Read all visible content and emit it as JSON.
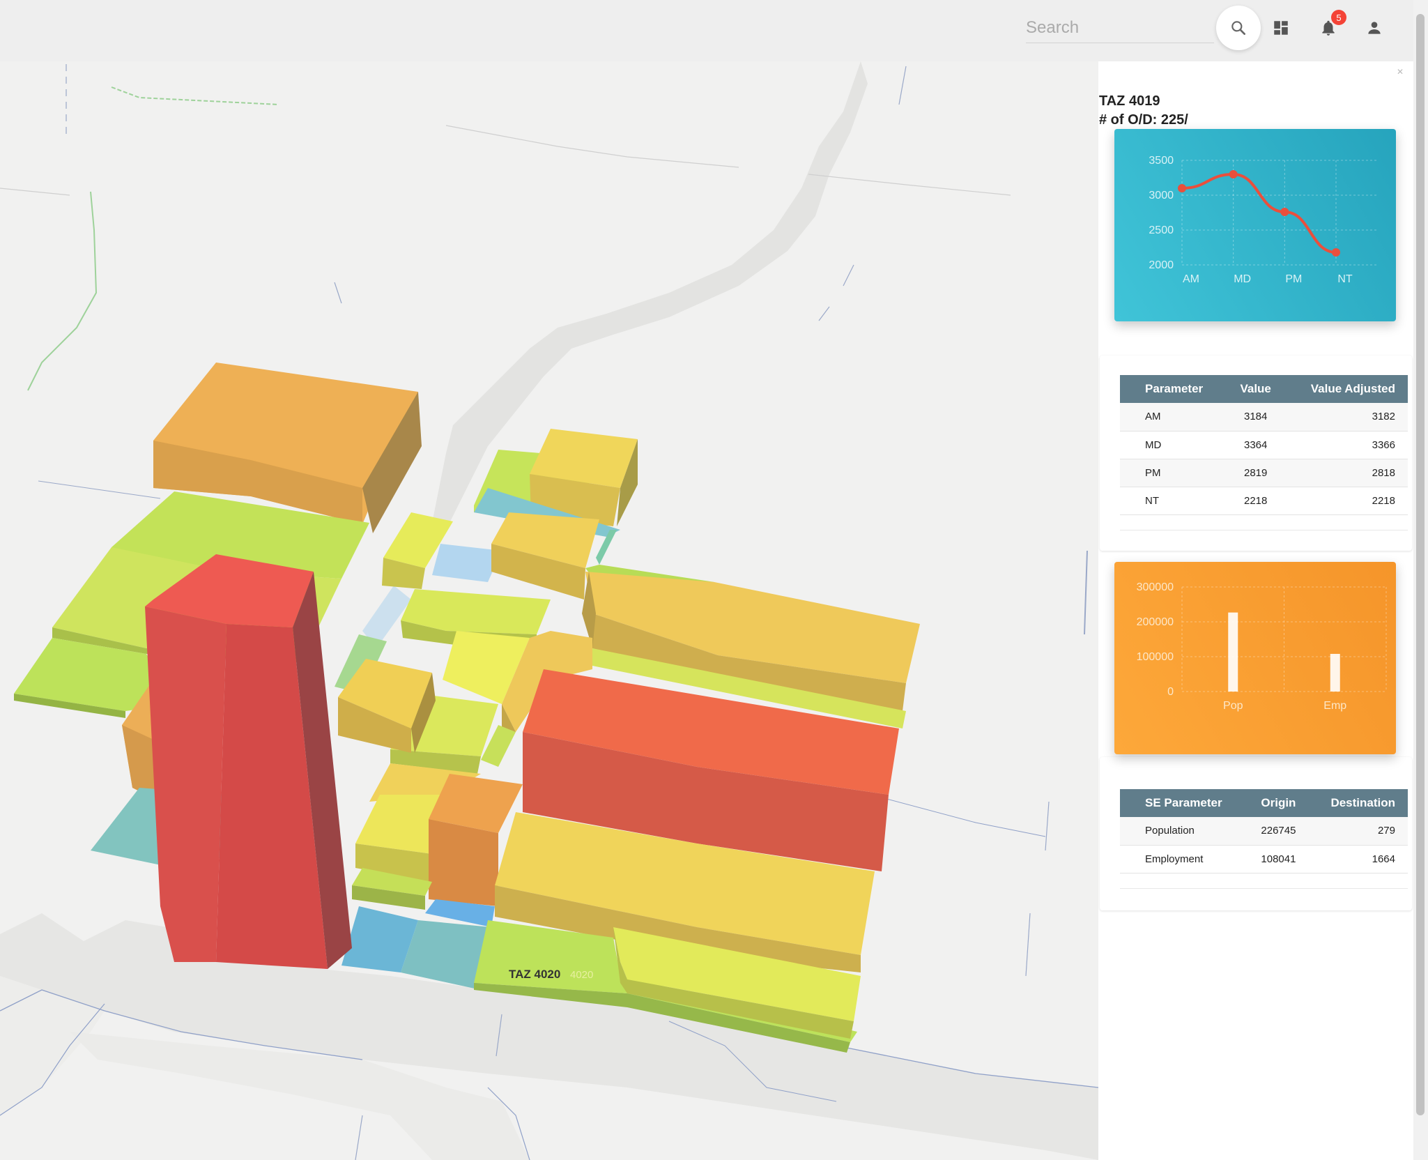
{
  "header": {
    "search_placeholder": "Search",
    "notification_count": "5",
    "icons": [
      "search-icon",
      "dashboard-icon",
      "bell-icon",
      "account-icon"
    ]
  },
  "map": {
    "label_taz": "TAZ 4020",
    "label_ghost": "4020",
    "colors": {
      "red": "#e8504a",
      "orange": "#eeb055",
      "yellow": "#f0d35a",
      "lime": "#c6e45a",
      "teal": "#7fc4c0",
      "blue": "#6fb6dc"
    }
  },
  "panel": {
    "title": "TAZ 4019",
    "od_label": "# of O/D: 225/",
    "od_table": {
      "headers": [
        "Parameter",
        "Value",
        "Value Adjusted"
      ],
      "rows": [
        [
          "AM",
          "3184",
          "3182"
        ],
        [
          "MD",
          "3364",
          "3366"
        ],
        [
          "PM",
          "2819",
          "2818"
        ],
        [
          "NT",
          "2218",
          "2218"
        ]
      ]
    },
    "se_table": {
      "headers": [
        "SE Parameter",
        "Origin",
        "Destination"
      ],
      "rows": [
        [
          "Population",
          "226745",
          "279"
        ],
        [
          "Employment",
          "108041",
          "1664"
        ]
      ]
    }
  },
  "chart_data": [
    {
      "type": "line",
      "categories": [
        "AM",
        "MD",
        "PM",
        "NT"
      ],
      "series": [
        {
          "values": [
            3100,
            3300,
            2760,
            2180
          ]
        }
      ],
      "ylim": [
        2000,
        3500
      ],
      "yticks": [
        "3500",
        "3000",
        "2500",
        "2000"
      ],
      "grid": true,
      "colors": {
        "line": "#ea4f3c",
        "background": "#2eb0c8",
        "text": "#d9f2f6"
      }
    },
    {
      "type": "bar",
      "categories": [
        "Pop",
        "Emp"
      ],
      "series": [
        {
          "values": [
            226745,
            108041
          ]
        }
      ],
      "ylim": [
        0,
        300000
      ],
      "yticks": [
        "300000",
        "200000",
        "100000",
        "0"
      ],
      "grid": true,
      "colors": {
        "bar": "#ffffff",
        "background": "#f7a033",
        "text": "#fde7c8"
      }
    }
  ]
}
